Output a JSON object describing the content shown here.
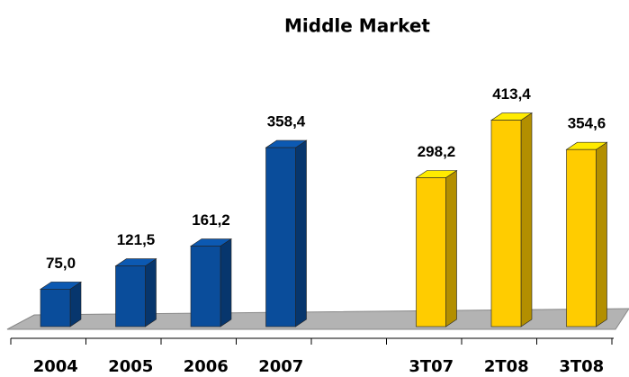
{
  "chart_data": {
    "type": "bar3d",
    "title": "Middle Market",
    "categories": [
      "2004",
      "2005",
      "2006",
      "2007",
      null,
      "3T07",
      "2T08",
      "3T08"
    ],
    "values": [
      75.0,
      121.5,
      161.2,
      358.4,
      null,
      298.2,
      413.4,
      354.6
    ],
    "value_labels": [
      "75,0",
      "121,5",
      "161,2",
      "358,4",
      null,
      "298,2",
      "413,4",
      "354,6"
    ],
    "colors": [
      "#0a4d9b",
      "#0a4d9b",
      "#0a4d9b",
      "#0a4d9b",
      null,
      "#ffcc00",
      "#ffcc00",
      "#ffcc00"
    ]
  }
}
